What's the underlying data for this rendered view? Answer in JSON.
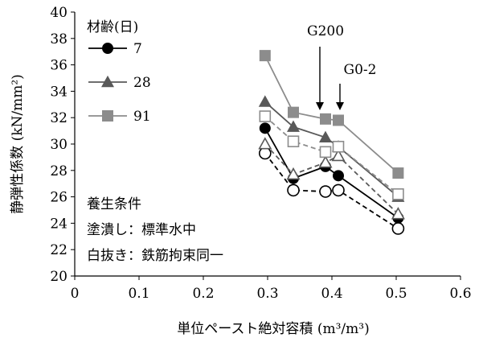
{
  "chart_data": {
    "type": "line",
    "xlabel": "単位ペースト絶対容積 (m³/m³)",
    "ylabel": "静弾性係数 (kN/mm²)",
    "xlim": [
      0,
      0.6
    ],
    "ylim": [
      20,
      40
    ],
    "x_ticks": [
      "0",
      "0.1",
      "0.2",
      "0.3",
      "0.4",
      "0.5",
      "0.6"
    ],
    "y_ticks": [
      "20",
      "22",
      "24",
      "26",
      "28",
      "30",
      "32",
      "34",
      "36",
      "38",
      "40"
    ],
    "grid": false,
    "legend": {
      "title": "材齢(日)",
      "placement": "top-left",
      "entries": [
        "7",
        "28",
        "91"
      ]
    },
    "annotations": [
      {
        "text": "G200",
        "x": 0.385,
        "y": 31.6
      },
      {
        "text": "G0-2",
        "x": 0.41,
        "y": 31.6
      }
    ],
    "notes": [
      "養生条件",
      "塗潰し：標準水中",
      "白抜き：鉄筋拘束同一"
    ],
    "series": [
      {
        "name": "7",
        "marker": "circle",
        "fill": "filled",
        "line": "solid",
        "color": "#000000",
        "points": [
          [
            0.296,
            31.2
          ],
          [
            0.34,
            27.4
          ],
          [
            0.39,
            28.3
          ],
          [
            0.41,
            27.6
          ],
          [
            0.503,
            24.4
          ]
        ]
      },
      {
        "name": "28",
        "marker": "triangle",
        "fill": "filled",
        "line": "solid",
        "color": "#595959",
        "points": [
          [
            0.296,
            33.2
          ],
          [
            0.34,
            31.3
          ],
          [
            0.39,
            30.5
          ],
          [
            0.41,
            29.8
          ],
          [
            0.503,
            26.0
          ]
        ]
      },
      {
        "name": "91",
        "marker": "square",
        "fill": "filled",
        "line": "solid",
        "color": "#8c8c8c",
        "points": [
          [
            0.296,
            36.7
          ],
          [
            0.34,
            32.4
          ],
          [
            0.39,
            31.9
          ],
          [
            0.41,
            31.8
          ],
          [
            0.503,
            27.8
          ]
        ]
      },
      {
        "name": "",
        "marker": "circle",
        "fill": "open",
        "line": "dashed",
        "color": "#000000",
        "points": [
          [
            0.296,
            29.3
          ],
          [
            0.34,
            26.5
          ],
          [
            0.39,
            26.4
          ],
          [
            0.41,
            26.5
          ],
          [
            0.503,
            23.6
          ]
        ]
      },
      {
        "name": "",
        "marker": "triangle",
        "fill": "open",
        "line": "dashed",
        "color": "#595959",
        "points": [
          [
            0.296,
            30.0
          ],
          [
            0.34,
            27.7
          ],
          [
            0.39,
            28.6
          ],
          [
            0.41,
            29.1
          ],
          [
            0.503,
            24.7
          ]
        ]
      },
      {
        "name": "",
        "marker": "square",
        "fill": "open",
        "line": "dashed",
        "color": "#8c8c8c",
        "points": [
          [
            0.296,
            32.1
          ],
          [
            0.34,
            30.2
          ],
          [
            0.39,
            29.4
          ],
          [
            0.41,
            29.8
          ],
          [
            0.503,
            26.2
          ]
        ]
      }
    ]
  }
}
